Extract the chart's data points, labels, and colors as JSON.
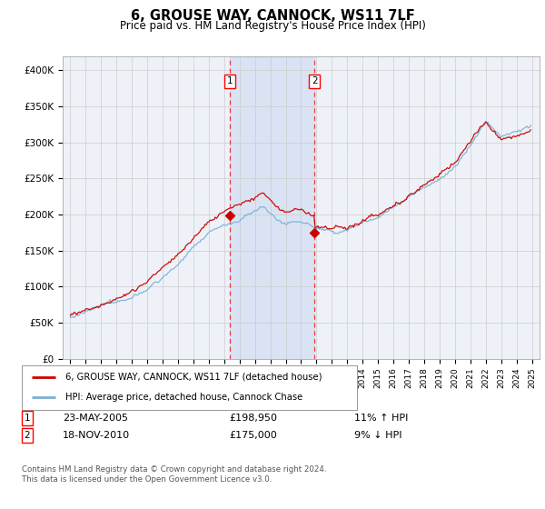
{
  "title": "6, GROUSE WAY, CANNOCK, WS11 7LF",
  "subtitle": "Price paid vs. HM Land Registry's House Price Index (HPI)",
  "ylabel_ticks": [
    "£0",
    "£50K",
    "£100K",
    "£150K",
    "£200K",
    "£250K",
    "£300K",
    "£350K",
    "£400K"
  ],
  "ytick_values": [
    0,
    50000,
    100000,
    150000,
    200000,
    250000,
    300000,
    350000,
    400000
  ],
  "ylim": [
    0,
    420000
  ],
  "xlim_start": 1994.5,
  "xlim_end": 2025.5,
  "transaction1_x": 2005.38,
  "transaction1_price": 198950,
  "transaction2_x": 2010.88,
  "transaction2_price": 175000,
  "legend_line1": "6, GROUSE WAY, CANNOCK, WS11 7LF (detached house)",
  "legend_line2": "HPI: Average price, detached house, Cannock Chase",
  "footer": "Contains HM Land Registry data © Crown copyright and database right 2024.\nThis data is licensed under the Open Government Licence v3.0.",
  "line_color_red": "#cc0000",
  "line_color_blue": "#7ab0d4",
  "bg_color": "#eef2f8",
  "grid_color": "#cccccc",
  "span_color": "#c8d8f0"
}
